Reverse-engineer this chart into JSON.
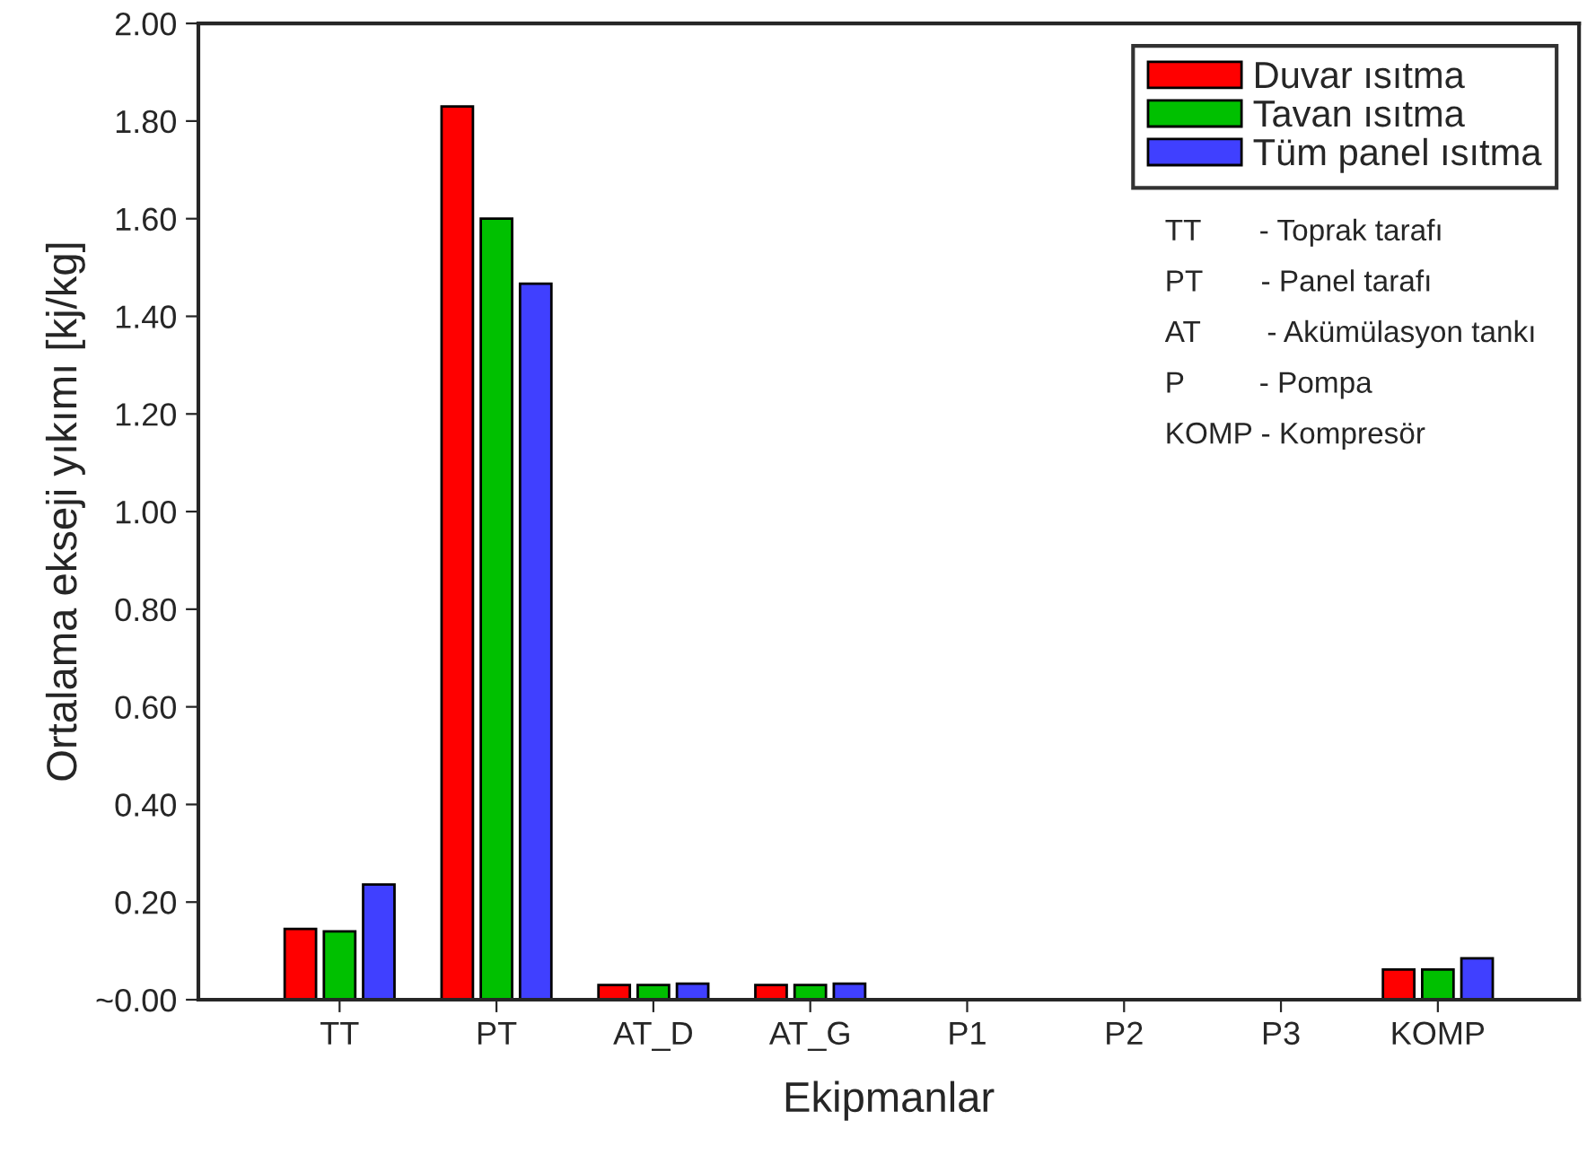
{
  "chart_data": {
    "type": "bar",
    "xlabel": "Ekipmanlar",
    "ylabel": "Ortalama ekseji yıkımı [kj/kg]",
    "categories": [
      "TT",
      "PT",
      "AT_D",
      "AT_G",
      "P1",
      "P2",
      "P3",
      "KOMP"
    ],
    "series": [
      {
        "name": "Duvar ısıtma",
        "color": "#ff0000",
        "values": [
          0.145,
          1.83,
          0.03,
          0.03,
          null,
          null,
          null,
          0.062
        ]
      },
      {
        "name": "Tavan ısıtma",
        "color": "#00c000",
        "values": [
          0.14,
          1.6,
          0.03,
          0.03,
          null,
          null,
          null,
          0.062
        ]
      },
      {
        "name": "Tüm panel ısıtma",
        "color": "#4040ff",
        "values": [
          0.236,
          1.467,
          0.033,
          0.033,
          null,
          null,
          null,
          0.085
        ]
      }
    ],
    "ylim": [
      0,
      2.0
    ],
    "yticks": [
      {
        "value": 0,
        "label": "~0.00"
      },
      {
        "value": 0.2,
        "label": "0.20"
      },
      {
        "value": 0.4,
        "label": "0.40"
      },
      {
        "value": 0.6,
        "label": "0.60"
      },
      {
        "value": 0.8,
        "label": "0.80"
      },
      {
        "value": 1.0,
        "label": "1.00"
      },
      {
        "value": 1.2,
        "label": "1.20"
      },
      {
        "value": 1.4,
        "label": "1.40"
      },
      {
        "value": 1.6,
        "label": "1.60"
      },
      {
        "value": 1.8,
        "label": "1.80"
      },
      {
        "value": 2.0,
        "label": "2.00"
      }
    ],
    "legend": "top right",
    "grid": false,
    "annotations": [
      "TT       - Toprak tarafı",
      "PT       - Panel tarafı",
      "AT        - Akümülasyon tankı",
      "P         - Pompa",
      "KOMP - Kompresör"
    ]
  }
}
